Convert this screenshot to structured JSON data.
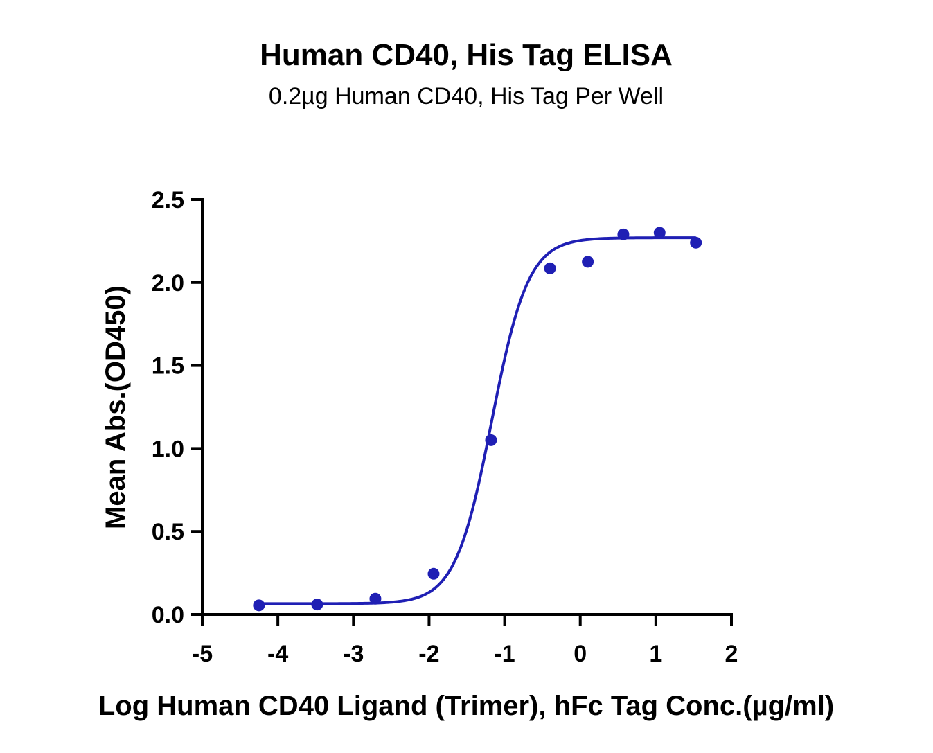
{
  "chart_data": {
    "type": "scatter",
    "title": "Human CD40, His Tag ELISA",
    "subtitle": "0.2µg Human CD40, His Tag Per Well",
    "xlabel": "Log Human CD40 Ligand (Trimer), hFc Tag Conc.(µg/ml)",
    "ylabel": "Mean Abs.(OD450)",
    "xlim": [
      -5,
      2
    ],
    "ylim": [
      0,
      2.5
    ],
    "xticks": [
      "-5",
      "-4",
      "-3",
      "-2",
      "-1",
      "0",
      "1",
      "2"
    ],
    "yticks": [
      "0.0",
      "0.5",
      "1.0",
      "1.5",
      "2.0",
      "2.5"
    ],
    "grid": false,
    "color": "#1f1fb4",
    "points": [
      {
        "x": -4.25,
        "y": 0.055
      },
      {
        "x": -3.48,
        "y": 0.06
      },
      {
        "x": -2.71,
        "y": 0.095
      },
      {
        "x": -1.94,
        "y": 0.245
      },
      {
        "x": -1.18,
        "y": 1.05
      },
      {
        "x": -0.4,
        "y": 2.085
      },
      {
        "x": 0.1,
        "y": 2.125
      },
      {
        "x": 0.57,
        "y": 2.29
      },
      {
        "x": 1.05,
        "y": 2.3
      },
      {
        "x": 1.53,
        "y": 2.24
      }
    ],
    "fit": {
      "model": "4PL",
      "bottom": 0.065,
      "top": 2.27,
      "logEC50": -1.17,
      "hill": 1.8,
      "x_range": [
        -4.25,
        1.53
      ]
    }
  }
}
